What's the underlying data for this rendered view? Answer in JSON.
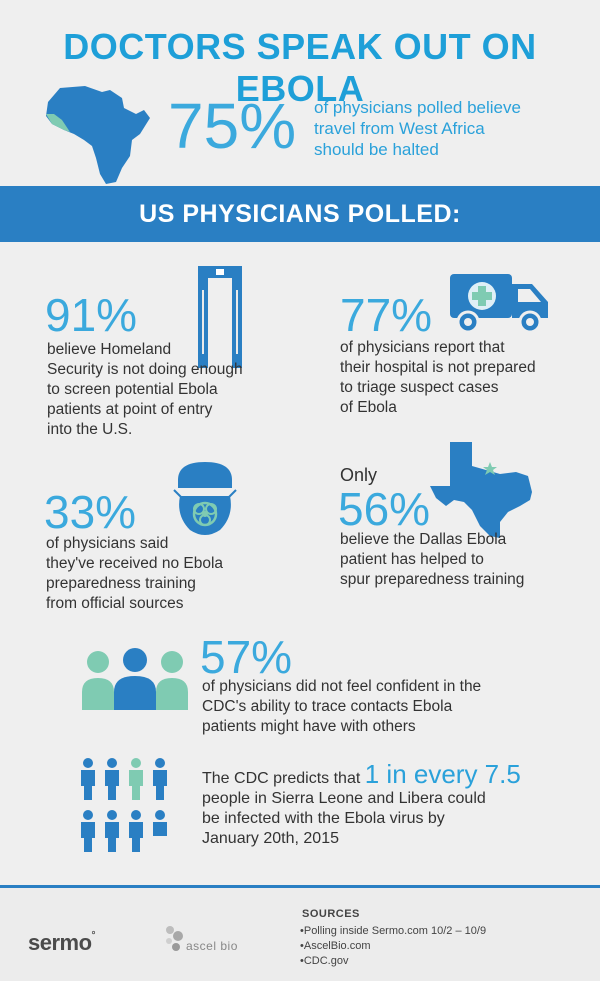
{
  "title": "DOCTORS SPEAK OUT ON EBOLA",
  "hero": {
    "percent": "75%",
    "line1": "of physicians polled believe",
    "line2": "travel from West Africa",
    "line3": "should be halted"
  },
  "banner": "US PHYSICIANS POLLED:",
  "stat91": {
    "percent": "91%",
    "lines": [
      "believe Homeland",
      "Security is not doing enough",
      "to screen potential Ebola",
      "patients at point of entry",
      "into the U.S."
    ]
  },
  "stat77": {
    "percent": "77%",
    "lines": [
      "of physicians report that",
      "their hospital is not prepared",
      "to triage suspect cases",
      "of Ebola"
    ]
  },
  "stat33": {
    "percent": "33%",
    "lines": [
      "of physicians said",
      "they've received no Ebola",
      "preparedness training",
      "from official sources"
    ]
  },
  "stat56": {
    "prefix": "Only",
    "percent": "56%",
    "lines": [
      "believe the Dallas Ebola",
      "patient has helped to",
      "spur preparedness training"
    ]
  },
  "stat57": {
    "percent": "57%",
    "lines": [
      "of physicians did not feel confident in the",
      "CDC's ability to trace contacts Ebola",
      "patients might have with others"
    ]
  },
  "cdc": {
    "prefix": "The CDC predicts that",
    "highlight": "1 in every 7.5",
    "lines": [
      "people in Sierra Leone and Libera could",
      "be infected with the Ebola virus by",
      "January 20th, 2015"
    ]
  },
  "footer": {
    "brand1": "sermo",
    "brand2": "ascel bio",
    "sources_title": "SOURCES",
    "sources": [
      "•Polling inside Sermo.com 10/2 – 10/9",
      "•AscelBio.com",
      "•CDC.gov"
    ]
  },
  "colors": {
    "primary": "#2a7fc3",
    "accent": "#3ba9dd",
    "teal": "#7fcbb2"
  }
}
